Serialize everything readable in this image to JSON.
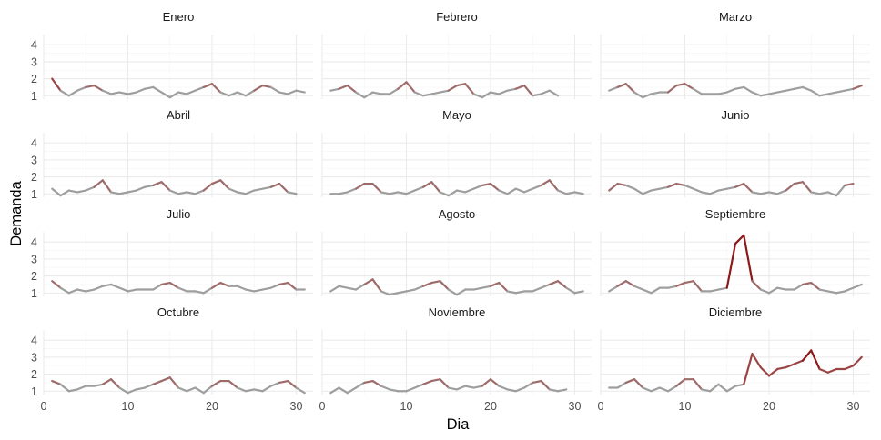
{
  "chart_data": {
    "type": "line",
    "facet_layout": "4 rows x 3 columns, shared axes",
    "xlabel": "Dia",
    "ylabel": "Demanda",
    "xlim": [
      0,
      32
    ],
    "ylim": [
      0.8,
      4.6
    ],
    "x_ticks": [
      "0",
      "10",
      "20",
      "30"
    ],
    "y_ticks": [
      "1",
      "2",
      "3",
      "4"
    ],
    "grid": true,
    "colors": {
      "normal": "#9e9e9e",
      "mid": "#9e6b6b",
      "high": "#8b1a1a"
    },
    "panels": [
      {
        "label": "Enero",
        "values": [
          2.0,
          1.3,
          1.0,
          1.3,
          1.5,
          1.6,
          1.3,
          1.1,
          1.2,
          1.1,
          1.2,
          1.4,
          1.5,
          1.2,
          0.9,
          1.2,
          1.1,
          1.3,
          1.5,
          1.7,
          1.2,
          1.0,
          1.2,
          1.0,
          1.3,
          1.6,
          1.5,
          1.2,
          1.1,
          1.3,
          1.2
        ]
      },
      {
        "label": "Febrero",
        "values": [
          1.3,
          1.4,
          1.6,
          1.2,
          0.9,
          1.2,
          1.1,
          1.1,
          1.4,
          1.8,
          1.2,
          1.0,
          1.1,
          1.2,
          1.3,
          1.6,
          1.7,
          1.1,
          0.9,
          1.2,
          1.1,
          1.3,
          1.4,
          1.6,
          1.0,
          1.1,
          1.3,
          1.0
        ]
      },
      {
        "label": "Marzo",
        "values": [
          1.3,
          1.5,
          1.7,
          1.2,
          0.9,
          1.1,
          1.2,
          1.2,
          1.6,
          1.7,
          1.4,
          1.1,
          1.1,
          1.1,
          1.2,
          1.4,
          1.5,
          1.2,
          1.0,
          1.1,
          1.2,
          1.3,
          1.4,
          1.5,
          1.3,
          1.0,
          1.1,
          1.2,
          1.3,
          1.4,
          1.6
        ]
      },
      {
        "label": "Abril",
        "values": [
          1.3,
          0.9,
          1.2,
          1.1,
          1.2,
          1.4,
          1.8,
          1.1,
          1.0,
          1.1,
          1.2,
          1.4,
          1.5,
          1.7,
          1.2,
          1.0,
          1.1,
          1.0,
          1.2,
          1.6,
          1.8,
          1.3,
          1.1,
          1.0,
          1.2,
          1.3,
          1.4,
          1.6,
          1.1,
          1.0
        ]
      },
      {
        "label": "Mayo",
        "values": [
          1.0,
          1.0,
          1.1,
          1.3,
          1.6,
          1.6,
          1.1,
          1.0,
          1.1,
          1.0,
          1.2,
          1.4,
          1.7,
          1.1,
          0.9,
          1.2,
          1.1,
          1.3,
          1.5,
          1.6,
          1.2,
          1.0,
          1.3,
          1.1,
          1.3,
          1.5,
          1.8,
          1.2,
          1.0,
          1.1,
          1.0
        ]
      },
      {
        "label": "Junio",
        "values": [
          1.2,
          1.6,
          1.5,
          1.3,
          1.0,
          1.2,
          1.3,
          1.4,
          1.6,
          1.5,
          1.3,
          1.1,
          1.0,
          1.2,
          1.3,
          1.4,
          1.6,
          1.1,
          1.0,
          1.1,
          1.0,
          1.2,
          1.6,
          1.7,
          1.1,
          1.0,
          1.1,
          0.9,
          1.5,
          1.6
        ]
      },
      {
        "label": "Julio",
        "values": [
          1.7,
          1.3,
          1.0,
          1.2,
          1.1,
          1.2,
          1.4,
          1.5,
          1.3,
          1.1,
          1.2,
          1.2,
          1.2,
          1.5,
          1.6,
          1.3,
          1.1,
          1.1,
          1.0,
          1.3,
          1.6,
          1.4,
          1.4,
          1.2,
          1.1,
          1.2,
          1.3,
          1.5,
          1.6,
          1.2,
          1.2
        ]
      },
      {
        "label": "Agosto",
        "values": [
          1.1,
          1.4,
          1.3,
          1.2,
          1.5,
          1.8,
          1.1,
          0.9,
          1.0,
          1.1,
          1.2,
          1.4,
          1.6,
          1.7,
          1.2,
          0.9,
          1.2,
          1.2,
          1.3,
          1.4,
          1.6,
          1.1,
          1.0,
          1.1,
          1.1,
          1.3,
          1.5,
          1.7,
          1.3,
          1.0,
          1.1
        ]
      },
      {
        "label": "Septiembre",
        "values": [
          1.1,
          1.4,
          1.7,
          1.4,
          1.2,
          1.0,
          1.3,
          1.3,
          1.4,
          1.6,
          1.7,
          1.1,
          1.1,
          1.2,
          1.3,
          3.9,
          4.4,
          1.7,
          1.2,
          1.0,
          1.3,
          1.2,
          1.2,
          1.5,
          1.6,
          1.2,
          1.1,
          1.0,
          1.1,
          1.3,
          1.5
        ]
      },
      {
        "label": "Octubre",
        "values": [
          1.6,
          1.4,
          1.0,
          1.1,
          1.3,
          1.3,
          1.4,
          1.7,
          1.2,
          0.9,
          1.1,
          1.2,
          1.4,
          1.6,
          1.8,
          1.2,
          1.0,
          1.2,
          0.9,
          1.3,
          1.6,
          1.6,
          1.2,
          1.0,
          1.1,
          1.0,
          1.3,
          1.5,
          1.6,
          1.2,
          0.9
        ]
      },
      {
        "label": "Noviembre",
        "values": [
          0.9,
          1.2,
          0.9,
          1.2,
          1.5,
          1.6,
          1.3,
          1.1,
          1.0,
          1.0,
          1.2,
          1.4,
          1.6,
          1.7,
          1.2,
          1.1,
          1.3,
          1.2,
          1.3,
          1.7,
          1.3,
          1.1,
          1.0,
          1.2,
          1.5,
          1.6,
          1.1,
          1.0,
          1.1
        ]
      },
      {
        "label": "Diciembre",
        "values": [
          1.2,
          1.2,
          1.5,
          1.7,
          1.2,
          1.0,
          1.2,
          1.0,
          1.3,
          1.7,
          1.7,
          1.1,
          1.0,
          1.4,
          1.0,
          1.3,
          1.4,
          3.2,
          2.4,
          1.9,
          2.3,
          2.4,
          2.6,
          2.8,
          3.4,
          2.3,
          2.1,
          2.3,
          2.3,
          2.5,
          3.0
        ]
      }
    ]
  }
}
